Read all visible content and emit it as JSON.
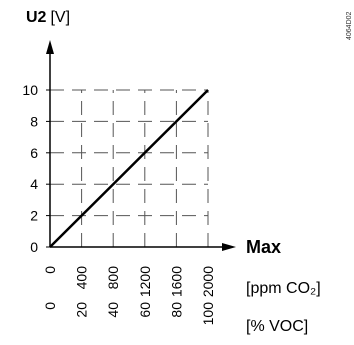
{
  "chart_data": {
    "type": "line",
    "title": "",
    "ylabel": {
      "bold": "U2",
      "unit": "[V]"
    },
    "xlabel": "Max",
    "doc_id": "4064D02",
    "ylim": [
      0,
      10
    ],
    "y_ticks": [
      "0",
      "2",
      "4",
      "6",
      "8",
      "10"
    ],
    "x_axes": [
      {
        "unit_label": "[ppm CO₂]",
        "ticks": [
          "0",
          "400",
          "800",
          "1200",
          "1600",
          "2000"
        ],
        "range": [
          0,
          2000
        ]
      },
      {
        "unit_label": "[% VOC]",
        "ticks": [
          "0",
          "20",
          "40",
          "60",
          "80",
          "100"
        ],
        "range": [
          0,
          100
        ]
      }
    ],
    "series": [
      {
        "x_ppm_co2": [
          0,
          400,
          800,
          1200,
          1600,
          2000
        ],
        "y": [
          0,
          2,
          4,
          6,
          8,
          10
        ]
      }
    ],
    "grid": "dashed"
  }
}
